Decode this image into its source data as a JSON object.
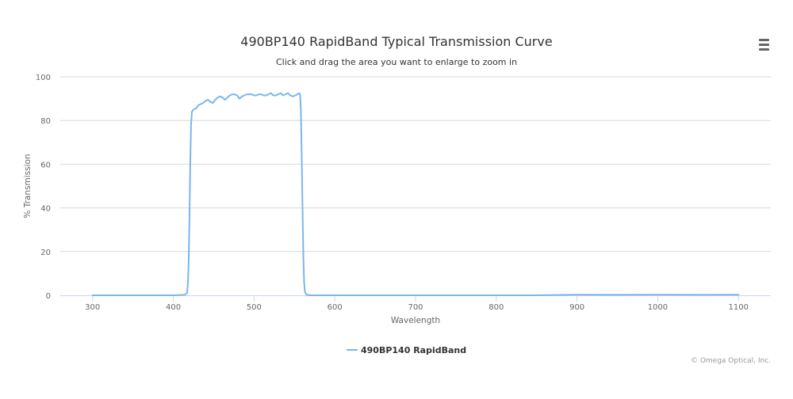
{
  "chart_data": {
    "type": "line",
    "title": "490BP140 RapidBand Typical Transmission Curve",
    "subtitle": "Click and drag the area you want to enlarge to zoom in",
    "xlabel": "Wavelength",
    "ylabel": "% Transmission",
    "xlim": [
      260,
      1140
    ],
    "ylim": [
      0,
      100
    ],
    "x_ticks": [
      300,
      400,
      500,
      600,
      700,
      800,
      900,
      1000,
      1100
    ],
    "y_ticks": [
      0,
      20,
      40,
      60,
      80,
      100
    ],
    "grid": "horizontal",
    "legend_position": "bottom-center",
    "credits": "© Omega Optical, Inc.",
    "series": [
      {
        "name": "490BP140 RapidBand",
        "color": "#7cb5ec",
        "points": [
          [
            300,
            0
          ],
          [
            350,
            0
          ],
          [
            400,
            0
          ],
          [
            414,
            0.2
          ],
          [
            417,
            1
          ],
          [
            418,
            5
          ],
          [
            419,
            15
          ],
          [
            420,
            35
          ],
          [
            421,
            60
          ],
          [
            422,
            78
          ],
          [
            423,
            84
          ],
          [
            425,
            85
          ],
          [
            428,
            85.5
          ],
          [
            431,
            87
          ],
          [
            434,
            87.5
          ],
          [
            437,
            88
          ],
          [
            440,
            89
          ],
          [
            443,
            89.5
          ],
          [
            446,
            88.5
          ],
          [
            449,
            88
          ],
          [
            452,
            89.5
          ],
          [
            455,
            90.5
          ],
          [
            458,
            91
          ],
          [
            461,
            90.5
          ],
          [
            464,
            89.5
          ],
          [
            467,
            90.5
          ],
          [
            470,
            91.5
          ],
          [
            473,
            92
          ],
          [
            476,
            92
          ],
          [
            479,
            91.5
          ],
          [
            482,
            90
          ],
          [
            485,
            91
          ],
          [
            488,
            91.5
          ],
          [
            491,
            92
          ],
          [
            494,
            92
          ],
          [
            497,
            92
          ],
          [
            500,
            91.5
          ],
          [
            503,
            91.5
          ],
          [
            506,
            92
          ],
          [
            509,
            92
          ],
          [
            512,
            91.5
          ],
          [
            515,
            91.5
          ],
          [
            518,
            92
          ],
          [
            521,
            92.5
          ],
          [
            524,
            91.5
          ],
          [
            527,
            91.5
          ],
          [
            530,
            92
          ],
          [
            533,
            92.5
          ],
          [
            536,
            91.5
          ],
          [
            539,
            92
          ],
          [
            542,
            92.5
          ],
          [
            545,
            91.5
          ],
          [
            548,
            91
          ],
          [
            551,
            91.5
          ],
          [
            554,
            92
          ],
          [
            556,
            92.5
          ],
          [
            557,
            92
          ],
          [
            558,
            85
          ],
          [
            559,
            65
          ],
          [
            560,
            40
          ],
          [
            561,
            18
          ],
          [
            562,
            6
          ],
          [
            563,
            1.5
          ],
          [
            565,
            0.3
          ],
          [
            570,
            0
          ],
          [
            700,
            0
          ],
          [
            850,
            0
          ],
          [
            900,
            0.3
          ],
          [
            950,
            0.2
          ],
          [
            1000,
            0.3
          ],
          [
            1050,
            0.2
          ],
          [
            1100,
            0.3
          ]
        ]
      }
    ]
  }
}
